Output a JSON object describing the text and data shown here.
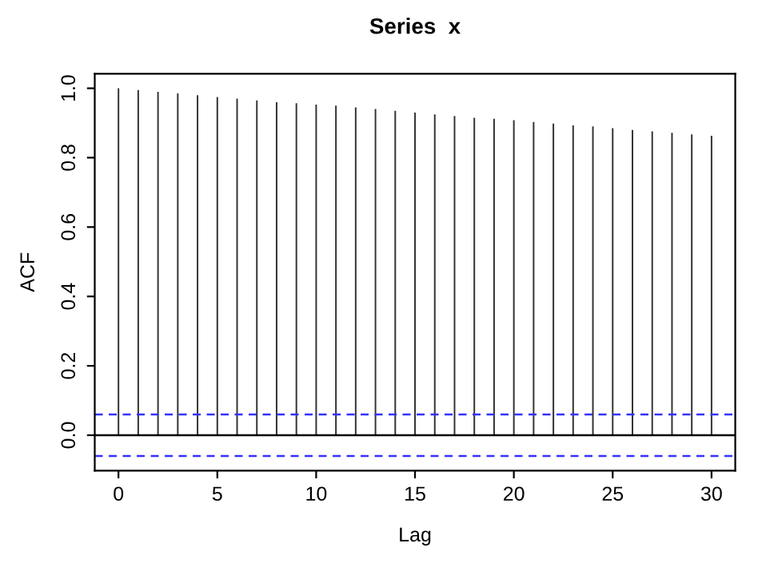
{
  "chart_data": {
    "type": "bar",
    "title": "Series  x",
    "xlabel": "Lag",
    "ylabel": "ACF",
    "x": [
      0,
      1,
      2,
      3,
      4,
      5,
      6,
      7,
      8,
      9,
      10,
      11,
      12,
      13,
      14,
      15,
      16,
      17,
      18,
      19,
      20,
      21,
      22,
      23,
      24,
      25,
      26,
      27,
      28,
      29,
      30
    ],
    "series": [
      {
        "color": "#333333",
        "values": [
          1.0,
          0.995,
          0.99,
          0.985,
          0.98,
          0.975,
          0.97,
          0.965,
          0.96,
          0.957,
          0.953,
          0.95,
          0.945,
          0.94,
          0.935,
          0.93,
          0.925,
          0.92,
          0.915,
          0.912,
          0.908,
          0.903,
          0.898,
          0.893,
          0.89,
          0.885,
          0.88,
          0.876,
          0.872,
          0.867,
          0.863
        ]
      }
    ],
    "xlim": [
      -1.2,
      31.2
    ],
    "ylim": [
      -0.102,
      1.042
    ],
    "xticks": [
      0,
      5,
      10,
      15,
      20,
      25,
      30
    ],
    "yticks": [
      {
        "value": 0,
        "label": "0.0"
      },
      {
        "value": 0.2,
        "label": "0.2"
      },
      {
        "value": 0.4,
        "label": "0.4"
      },
      {
        "value": 0.6,
        "label": "0.6"
      },
      {
        "value": 0.8,
        "label": "0.8"
      },
      {
        "value": 1.0,
        "label": "1.0"
      }
    ],
    "ref_lines": [
      {
        "axis": "y",
        "value": 0,
        "color": "#000000",
        "line_style": "solid"
      },
      {
        "axis": "y",
        "value": 0.06,
        "color": "#3333ff",
        "line_style": "dashed"
      },
      {
        "axis": "y",
        "value": -0.06,
        "color": "#3333ff",
        "line_style": "dashed"
      }
    ],
    "grid": false,
    "legend": false
  }
}
